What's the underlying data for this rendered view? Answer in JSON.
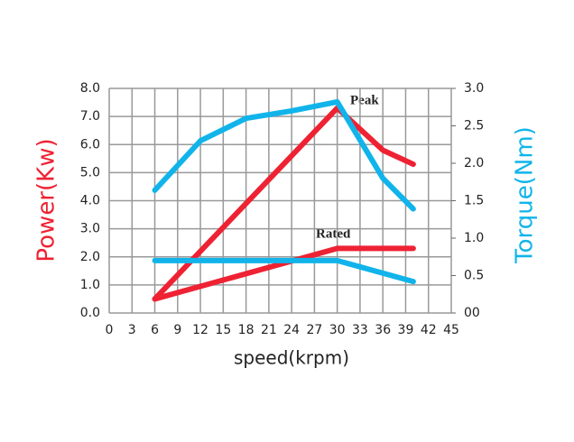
{
  "chart_data": {
    "type": "line",
    "xlabel": "speed(krpm)",
    "ylabel": "Power(Kw)",
    "y2label": "Torque(Nm)",
    "annotations": [
      "Peak",
      "Rated"
    ],
    "xlim": [
      0,
      45
    ],
    "xticks": [
      0,
      3,
      6,
      9,
      12,
      15,
      18,
      21,
      24,
      27,
      30,
      33,
      36,
      39,
      42,
      45
    ],
    "ylim": [
      0,
      8
    ],
    "yticks": [
      {
        "value": 0,
        "label": "0.0"
      },
      {
        "value": 1,
        "label": "1.0"
      },
      {
        "value": 2,
        "label": "2.0"
      },
      {
        "value": 3,
        "label": "3.0"
      },
      {
        "value": 4,
        "label": "4.0"
      },
      {
        "value": 5,
        "label": "5.0"
      },
      {
        "value": 6,
        "label": "6.0"
      },
      {
        "value": 7,
        "label": "7.0"
      },
      {
        "value": 8,
        "label": "8.0"
      }
    ],
    "y2lim": [
      0,
      3
    ],
    "y2ticks": [
      {
        "value": 0,
        "label": "00"
      },
      0.5,
      {
        "value": 1,
        "label": "1.0"
      },
      1.5,
      {
        "value": 2,
        "label": "2.0"
      },
      2.5,
      {
        "value": 3,
        "label": "3.0"
      }
    ],
    "grid": true,
    "series": [
      {
        "color": "#ee2233",
        "x": [
          6,
          30,
          36,
          40
        ],
        "values": [
          0.5,
          7.3,
          5.8,
          5.3
        ]
      },
      {
        "color": "#ee2233",
        "x": [
          6,
          30,
          40
        ],
        "values": [
          0.5,
          2.3,
          2.3
        ]
      },
      {
        "color": "#11b4ea",
        "axis": "y2",
        "x": [
          6,
          12,
          18,
          24,
          30,
          36,
          40
        ],
        "values": [
          1.64,
          2.3,
          2.6,
          2.7,
          2.82,
          1.8,
          1.39
        ]
      },
      {
        "color": "#11b4ea",
        "axis": "y2",
        "x": [
          6,
          30,
          40
        ],
        "values": [
          0.7,
          0.7,
          0.42
        ]
      }
    ]
  }
}
